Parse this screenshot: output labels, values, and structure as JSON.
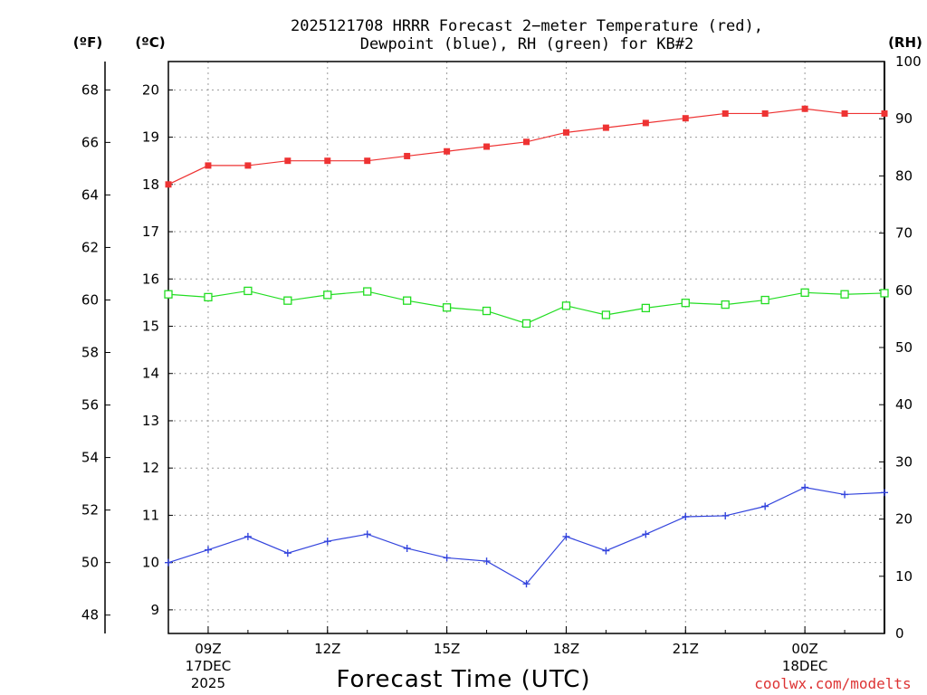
{
  "chart_data": {
    "type": "line",
    "title_line1": "2025121708 HRRR Forecast 2−meter Temperature (red),",
    "title_line2": "Dewpoint (blue), RH (green) for KB#2",
    "xlabel": "Forecast Time (UTC)",
    "credit": "coolwx.com/modelts",
    "units": {
      "fahrenheit": "(ºF)",
      "celsius": "(ºC)",
      "rh": "(RH)"
    },
    "celsius_axis": {
      "ylim": [
        8.5,
        20.6
      ],
      "ticks": [
        9,
        10,
        11,
        12,
        13,
        14,
        15,
        16,
        17,
        18,
        19,
        20
      ]
    },
    "fahrenheit_ticks": [
      48,
      50,
      52,
      54,
      56,
      58,
      60,
      62,
      64,
      66,
      68
    ],
    "rh_axis": {
      "ylim": [
        0,
        100
      ],
      "ticks": [
        0,
        10,
        20,
        30,
        40,
        50,
        60,
        70,
        80,
        90,
        100
      ]
    },
    "x": [
      8,
      9,
      10,
      11,
      12,
      13,
      14,
      15,
      16,
      17,
      18,
      19,
      20,
      21,
      22,
      23,
      24,
      25,
      26
    ],
    "xlim": [
      8,
      26
    ],
    "x_ticks": [
      {
        "x": 9,
        "label": "09Z",
        "date": "17DEC",
        "year": "2025"
      },
      {
        "x": 12,
        "label": "12Z"
      },
      {
        "x": 15,
        "label": "15Z"
      },
      {
        "x": 18,
        "label": "18Z"
      },
      {
        "x": 21,
        "label": "21Z"
      },
      {
        "x": 24,
        "label": "00Z",
        "date": "18DEC"
      }
    ],
    "series": [
      {
        "name": "Temperature",
        "axis": "celsius",
        "color": "#ee3333",
        "marker": "filled-square",
        "values": [
          18.0,
          18.4,
          18.4,
          18.5,
          18.5,
          18.5,
          18.6,
          18.7,
          18.8,
          18.9,
          19.1,
          19.2,
          19.3,
          19.4,
          19.5,
          19.5,
          19.6,
          19.5,
          19.5
        ]
      },
      {
        "name": "Dewpoint",
        "axis": "celsius",
        "color": "#3344dd",
        "marker": "plus",
        "values": [
          10.0,
          10.27,
          10.55,
          10.2,
          10.45,
          10.6,
          10.3,
          10.1,
          10.03,
          9.55,
          10.55,
          10.25,
          10.6,
          10.97,
          10.99,
          11.19,
          11.59,
          11.44,
          11.48
        ]
      },
      {
        "name": "RH",
        "axis": "rh",
        "color": "#22dd22",
        "marker": "open-square",
        "values": [
          59.3,
          58.8,
          59.9,
          58.2,
          59.2,
          59.8,
          58.2,
          57.0,
          56.4,
          54.2,
          57.3,
          55.7,
          56.9,
          57.8,
          57.5,
          58.3,
          59.6,
          59.3,
          59.5
        ]
      }
    ]
  }
}
